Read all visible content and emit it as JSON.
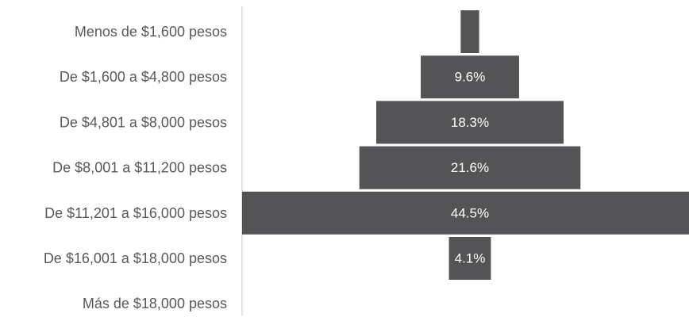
{
  "chart_data": {
    "type": "bar",
    "orientation": "horizontal-centered",
    "title": "",
    "xlabel": "",
    "ylabel": "",
    "categories": [
      "Menos de $1,600 pesos",
      "De $1,600 a $4,800 pesos",
      "De $4,801 a $8,000 pesos",
      "De $8,001 a $11,200 pesos",
      "De $11,201 a $16,000 pesos",
      "De $16,001 a $18,000 pesos",
      "Más de $18,000 pesos"
    ],
    "values": [
      1.8,
      9.6,
      18.3,
      21.6,
      44.5,
      4.1,
      0
    ],
    "data_labels": [
      "",
      "9.6%",
      "18.3%",
      "21.6%",
      "44.5%",
      "4.1%",
      ""
    ],
    "value_unit": "%",
    "bar_color": "#545457",
    "label_color": "#ffffff",
    "category_label_color": "#595959",
    "axis_color": "#d9d9d9",
    "grid": false,
    "legend": "none"
  }
}
